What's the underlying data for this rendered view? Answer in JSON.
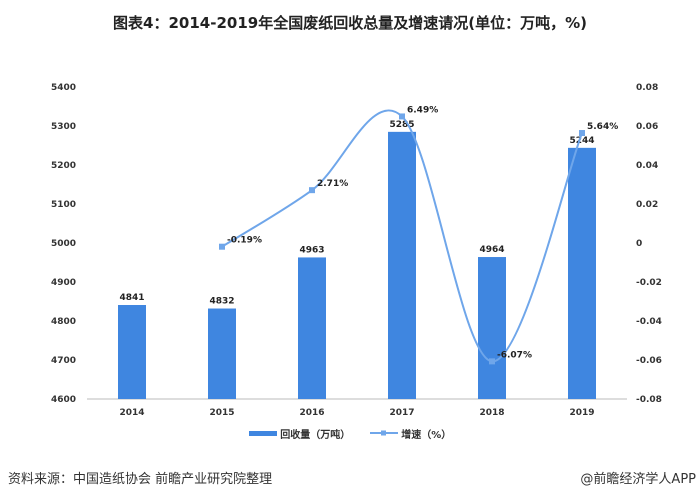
{
  "chart_data": {
    "type": "bar+line",
    "title": "图表4：2014-2019年全国废纸回收总量及增速请况(单位：万吨，%)",
    "categories": [
      "2014",
      "2015",
      "2016",
      "2017",
      "2018",
      "2019"
    ],
    "series": [
      {
        "name": "回收量（万吨）",
        "type": "bar",
        "axis": "left",
        "values": [
          4841,
          4832,
          4963,
          5285,
          4964,
          5244
        ],
        "labels": [
          "4841",
          "4832",
          "4963",
          "5285",
          "4964",
          "5244"
        ],
        "color": "#3f86e0"
      },
      {
        "name": "增速（%）",
        "type": "line",
        "axis": "right",
        "values": [
          null,
          -0.0019,
          0.0271,
          0.0649,
          -0.0607,
          0.0564
        ],
        "labels": [
          "",
          "-0.19%",
          "2.71%",
          "6.49%",
          "-6.07%",
          "5.64%"
        ],
        "color": "#6fa6ea"
      }
    ],
    "ylim_left": [
      4600,
      5400
    ],
    "yticks_left": [
      "4600",
      "4700",
      "4800",
      "4900",
      "5000",
      "5100",
      "5200",
      "5300",
      "5400"
    ],
    "ylim_right": [
      -0.08,
      0.08
    ],
    "yticks_right": [
      "-0.08",
      "-0.06",
      "-0.04",
      "-0.02",
      "0",
      "0.02",
      "0.04",
      "0.06",
      "0.08"
    ],
    "grid": false,
    "legend": "bottom"
  },
  "source": "资料来源：中国造纸协会 前瞻产业研究院整理",
  "brand": "@前瞻经济学人APP"
}
